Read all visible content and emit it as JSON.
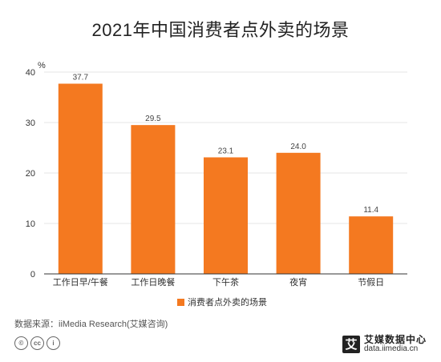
{
  "chart_data": {
    "type": "bar",
    "title": "2021年中国消费者点外卖的场景",
    "ylabel": "%",
    "ylim": [
      0,
      40
    ],
    "yticks": [
      0,
      10,
      20,
      30,
      40
    ],
    "categories": [
      "工作日早/午餐",
      "工作日晚餐",
      "下午茶",
      "夜宵",
      "节假日"
    ],
    "series": [
      {
        "name": "消费者点外卖的场景",
        "values": [
          37.7,
          29.5,
          23.1,
          24.0,
          11.4
        ],
        "labels": [
          "37.7",
          "29.5",
          "23.1",
          "24.0",
          "11.4"
        ]
      }
    ],
    "legend_position": "bottom",
    "grid": true,
    "color": "#f47920"
  },
  "footer": {
    "source": "数据来源：iiMedia Research(艾媒咨询)",
    "logo_mark": "艾",
    "logo_name": "艾媒数据中心",
    "logo_url": "data.iimedia.cn"
  },
  "cc_icons": [
    "cc-icon",
    "by-icon"
  ]
}
